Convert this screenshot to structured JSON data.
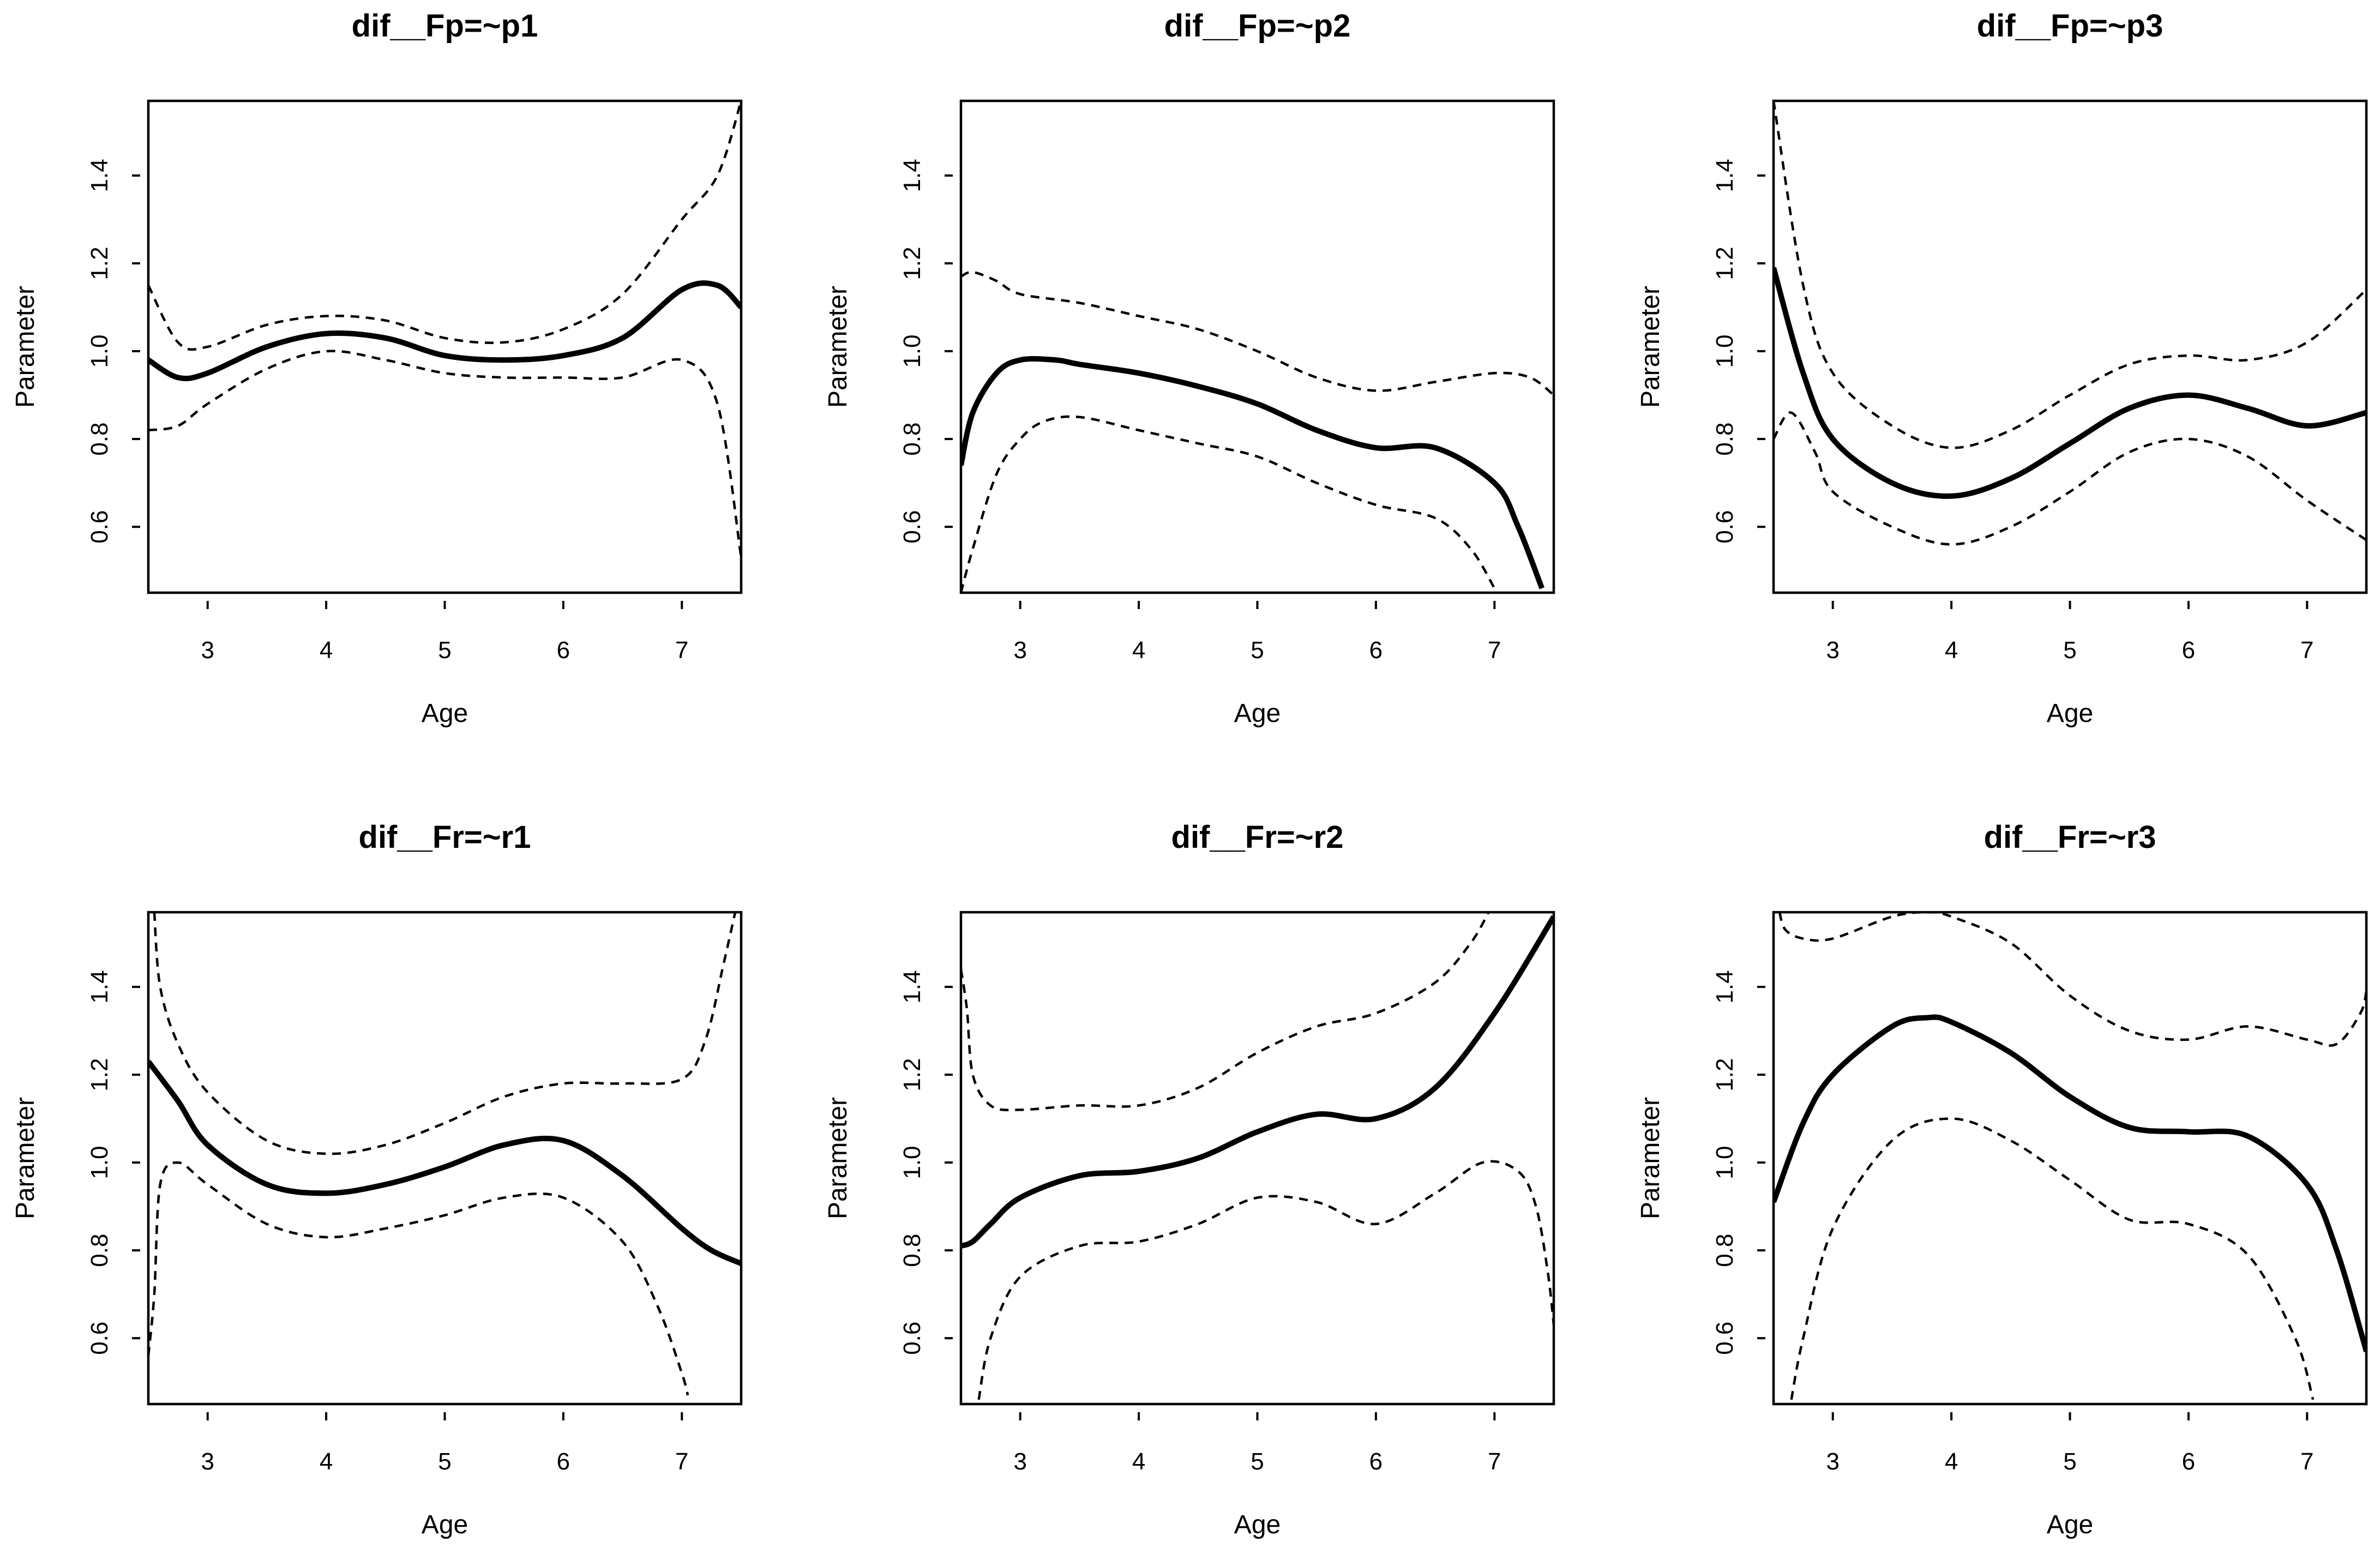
{
  "chart_data": [
    {
      "type": "line",
      "title": "dif__Fp=~p1",
      "xlabel": "Age",
      "ylabel": "Parameter",
      "xlim": [
        2.5,
        7.5
      ],
      "ylim": [
        0.45,
        1.57
      ],
      "xticks": [
        "3",
        "4",
        "5",
        "6",
        "7"
      ],
      "yticks": [
        "0.6",
        "0.8",
        "1.0",
        "1.2",
        "1.4"
      ],
      "grid": false,
      "series": [
        {
          "name": "estimate",
          "style": "solid",
          "x": [
            2.5,
            2.75,
            3.0,
            3.5,
            4.0,
            4.5,
            5.0,
            5.5,
            6.0,
            6.5,
            7.0,
            7.3,
            7.5
          ],
          "y": [
            0.98,
            0.94,
            0.95,
            1.01,
            1.04,
            1.03,
            0.99,
            0.98,
            0.99,
            1.03,
            1.14,
            1.15,
            1.1
          ]
        },
        {
          "name": "upper",
          "style": "dashed",
          "x": [
            2.5,
            2.75,
            3.0,
            3.5,
            4.0,
            4.5,
            5.0,
            5.5,
            6.0,
            6.5,
            7.0,
            7.3,
            7.5
          ],
          "y": [
            1.15,
            1.02,
            1.01,
            1.06,
            1.08,
            1.07,
            1.03,
            1.02,
            1.05,
            1.13,
            1.3,
            1.4,
            1.57
          ]
        },
        {
          "name": "lower",
          "style": "dashed",
          "x": [
            2.5,
            2.75,
            3.0,
            3.5,
            4.0,
            4.5,
            5.0,
            5.5,
            6.0,
            6.5,
            7.0,
            7.3,
            7.5
          ],
          "y": [
            0.82,
            0.83,
            0.88,
            0.96,
            1.0,
            0.98,
            0.95,
            0.94,
            0.94,
            0.94,
            0.98,
            0.88,
            0.53
          ]
        }
      ]
    },
    {
      "type": "line",
      "title": "dif__Fp=~p2",
      "xlabel": "Age",
      "ylabel": "Parameter",
      "xlim": [
        2.5,
        7.5
      ],
      "ylim": [
        0.45,
        1.57
      ],
      "xticks": [
        "3",
        "4",
        "5",
        "6",
        "7"
      ],
      "yticks": [
        "0.6",
        "0.8",
        "1.0",
        "1.2",
        "1.4"
      ],
      "grid": false,
      "series": [
        {
          "name": "estimate",
          "style": "solid",
          "x": [
            2.5,
            2.6,
            2.8,
            3.0,
            3.3,
            3.5,
            4.0,
            4.5,
            5.0,
            5.5,
            6.0,
            6.5,
            7.0,
            7.2,
            7.4
          ],
          "y": [
            0.74,
            0.86,
            0.95,
            0.98,
            0.98,
            0.97,
            0.95,
            0.92,
            0.88,
            0.82,
            0.78,
            0.78,
            0.7,
            0.6,
            0.46
          ]
        },
        {
          "name": "upper",
          "style": "dashed",
          "x": [
            2.5,
            2.6,
            2.8,
            3.0,
            3.5,
            4.0,
            4.5,
            5.0,
            5.5,
            6.0,
            6.5,
            7.0,
            7.3,
            7.5
          ],
          "y": [
            1.17,
            1.18,
            1.16,
            1.13,
            1.11,
            1.08,
            1.05,
            1.0,
            0.94,
            0.91,
            0.93,
            0.95,
            0.94,
            0.9
          ]
        },
        {
          "name": "lower",
          "style": "dashed",
          "x": [
            2.5,
            2.6,
            2.8,
            3.0,
            3.2,
            3.5,
            4.0,
            4.5,
            5.0,
            5.5,
            6.0,
            6.5,
            6.8,
            7.0
          ],
          "y": [
            0.45,
            0.55,
            0.72,
            0.8,
            0.84,
            0.85,
            0.82,
            0.79,
            0.76,
            0.7,
            0.65,
            0.62,
            0.55,
            0.46
          ]
        }
      ]
    },
    {
      "type": "line",
      "title": "dif__Fp=~p3",
      "xlabel": "Age",
      "ylabel": "Parameter",
      "xlim": [
        2.5,
        7.5
      ],
      "ylim": [
        0.45,
        1.57
      ],
      "xticks": [
        "3",
        "4",
        "5",
        "6",
        "7"
      ],
      "yticks": [
        "0.6",
        "0.8",
        "1.0",
        "1.2",
        "1.4"
      ],
      "grid": false,
      "series": [
        {
          "name": "estimate",
          "style": "solid",
          "x": [
            2.5,
            2.75,
            3.0,
            3.5,
            4.0,
            4.5,
            5.0,
            5.5,
            6.0,
            6.5,
            7.0,
            7.5
          ],
          "y": [
            1.19,
            0.95,
            0.8,
            0.7,
            0.67,
            0.71,
            0.79,
            0.87,
            0.9,
            0.87,
            0.83,
            0.86
          ]
        },
        {
          "name": "upper",
          "style": "dashed",
          "x": [
            2.5,
            2.75,
            3.0,
            3.5,
            4.0,
            4.5,
            5.0,
            5.5,
            6.0,
            6.5,
            7.0,
            7.5
          ],
          "y": [
            1.57,
            1.15,
            0.95,
            0.83,
            0.78,
            0.82,
            0.9,
            0.97,
            0.99,
            0.98,
            1.02,
            1.14
          ]
        },
        {
          "name": "lower",
          "style": "dashed",
          "x": [
            2.5,
            2.65,
            2.85,
            3.0,
            3.5,
            4.0,
            4.5,
            5.0,
            5.5,
            6.0,
            6.5,
            7.0,
            7.5
          ],
          "y": [
            0.8,
            0.86,
            0.77,
            0.68,
            0.6,
            0.56,
            0.6,
            0.68,
            0.77,
            0.8,
            0.76,
            0.66,
            0.57
          ]
        }
      ]
    },
    {
      "type": "line",
      "title": "dif__Fr=~r1",
      "xlabel": "Age",
      "ylabel": "Parameter",
      "xlim": [
        2.5,
        7.5
      ],
      "ylim": [
        0.45,
        1.57
      ],
      "xticks": [
        "3",
        "4",
        "5",
        "6",
        "7"
      ],
      "yticks": [
        "0.6",
        "0.8",
        "1.0",
        "1.2",
        "1.4"
      ],
      "grid": false,
      "series": [
        {
          "name": "estimate",
          "style": "solid",
          "x": [
            2.5,
            2.75,
            3.0,
            3.5,
            4.0,
            4.5,
            5.0,
            5.5,
            6.0,
            6.5,
            7.0,
            7.25,
            7.5
          ],
          "y": [
            1.23,
            1.14,
            1.04,
            0.95,
            0.93,
            0.95,
            0.99,
            1.04,
            1.05,
            0.97,
            0.85,
            0.8,
            0.77
          ]
        },
        {
          "name": "upper",
          "style": "dashed",
          "x": [
            2.55,
            2.6,
            2.75,
            3.0,
            3.5,
            4.0,
            4.5,
            5.0,
            5.5,
            6.0,
            6.5,
            7.0,
            7.2,
            7.35,
            7.45
          ],
          "y": [
            1.57,
            1.4,
            1.27,
            1.16,
            1.05,
            1.02,
            1.04,
            1.09,
            1.15,
            1.18,
            1.18,
            1.19,
            1.28,
            1.45,
            1.57
          ]
        },
        {
          "name": "lower",
          "style": "dashed",
          "x": [
            2.5,
            2.55,
            2.6,
            2.75,
            3.0,
            3.5,
            4.0,
            4.5,
            5.0,
            5.5,
            6.0,
            6.5,
            6.8,
            7.0,
            7.05
          ],
          "y": [
            0.56,
            0.7,
            0.95,
            1.0,
            0.95,
            0.86,
            0.83,
            0.85,
            0.88,
            0.92,
            0.92,
            0.82,
            0.67,
            0.52,
            0.47
          ]
        }
      ]
    },
    {
      "type": "line",
      "title": "dif__Fr=~r2",
      "xlabel": "Age",
      "ylabel": "Parameter",
      "xlim": [
        2.5,
        7.5
      ],
      "ylim": [
        0.45,
        1.57
      ],
      "xticks": [
        "3",
        "4",
        "5",
        "6",
        "7"
      ],
      "yticks": [
        "0.6",
        "0.8",
        "1.0",
        "1.2",
        "1.4"
      ],
      "grid": false,
      "series": [
        {
          "name": "estimate",
          "style": "solid",
          "x": [
            2.5,
            2.6,
            2.75,
            3.0,
            3.5,
            4.0,
            4.5,
            5.0,
            5.5,
            6.0,
            6.5,
            7.0,
            7.5
          ],
          "y": [
            0.81,
            0.82,
            0.86,
            0.92,
            0.97,
            0.98,
            1.01,
            1.07,
            1.11,
            1.1,
            1.17,
            1.34,
            1.56
          ]
        },
        {
          "name": "upper",
          "style": "dashed",
          "x": [
            2.5,
            2.55,
            2.6,
            2.75,
            3.0,
            3.5,
            4.0,
            4.5,
            5.0,
            5.5,
            6.0,
            6.5,
            6.8,
            6.95
          ],
          "y": [
            1.44,
            1.35,
            1.2,
            1.13,
            1.12,
            1.13,
            1.13,
            1.17,
            1.25,
            1.31,
            1.34,
            1.41,
            1.5,
            1.57
          ]
        },
        {
          "name": "lower",
          "style": "dashed",
          "x": [
            2.65,
            2.75,
            3.0,
            3.5,
            4.0,
            4.5,
            5.0,
            5.5,
            6.0,
            6.5,
            6.9,
            7.2,
            7.35,
            7.45,
            7.5
          ],
          "y": [
            0.46,
            0.6,
            0.74,
            0.81,
            0.82,
            0.86,
            0.92,
            0.91,
            0.86,
            0.93,
            1.0,
            0.98,
            0.9,
            0.75,
            0.63
          ]
        }
      ]
    },
    {
      "type": "line",
      "title": "dif__Fr=~r3",
      "xlabel": "Age",
      "ylabel": "Parameter",
      "xlim": [
        2.5,
        7.5
      ],
      "ylim": [
        0.45,
        1.57
      ],
      "xticks": [
        "3",
        "4",
        "5",
        "6",
        "7"
      ],
      "yticks": [
        "0.6",
        "0.8",
        "1.0",
        "1.2",
        "1.4"
      ],
      "grid": false,
      "series": [
        {
          "name": "estimate",
          "style": "solid",
          "x": [
            2.5,
            2.75,
            3.0,
            3.5,
            3.8,
            4.0,
            4.5,
            5.0,
            5.5,
            6.0,
            6.5,
            7.0,
            7.25,
            7.5
          ],
          "y": [
            0.91,
            1.09,
            1.2,
            1.31,
            1.33,
            1.32,
            1.25,
            1.15,
            1.08,
            1.07,
            1.06,
            0.95,
            0.8,
            0.57
          ]
        },
        {
          "name": "upper",
          "style": "dashed",
          "x": [
            2.55,
            2.6,
            2.75,
            3.0,
            3.5,
            3.8,
            4.0,
            4.5,
            5.0,
            5.5,
            6.0,
            6.5,
            7.0,
            7.25,
            7.45,
            7.5
          ],
          "y": [
            1.57,
            1.53,
            1.51,
            1.51,
            1.56,
            1.57,
            1.56,
            1.5,
            1.38,
            1.3,
            1.28,
            1.31,
            1.28,
            1.27,
            1.34,
            1.39
          ]
        },
        {
          "name": "lower",
          "style": "dashed",
          "x": [
            2.65,
            2.75,
            3.0,
            3.5,
            4.0,
            4.5,
            5.0,
            5.5,
            6.0,
            6.5,
            6.9,
            7.05
          ],
          "y": [
            0.46,
            0.6,
            0.85,
            1.05,
            1.1,
            1.05,
            0.96,
            0.87,
            0.86,
            0.79,
            0.6,
            0.46
          ]
        }
      ]
    }
  ]
}
